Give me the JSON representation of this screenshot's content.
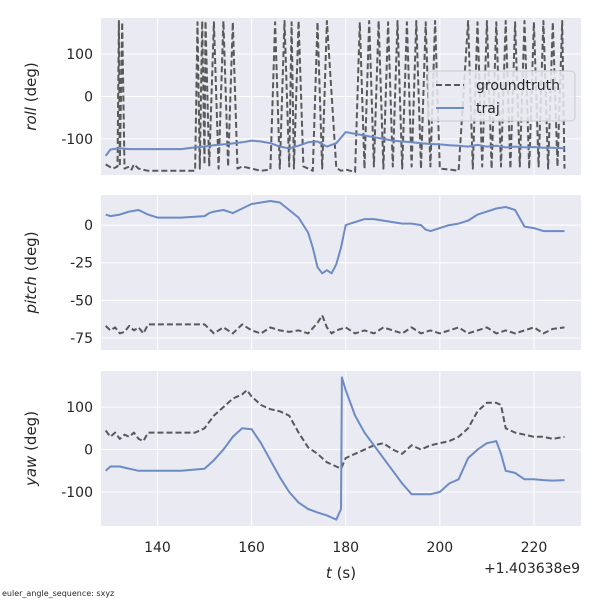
{
  "footnote": "euler_angle_sequence: sxyz",
  "offset_label": "+1.403638e9",
  "legend": [
    "groundtruth",
    "traj"
  ],
  "colors": {
    "groundtruth": "#595959",
    "traj": "#6d8bc4",
    "panel_bg": "#eaeaf2",
    "grid": "#ffffff"
  },
  "chart_data": [
    {
      "type": "line",
      "ylabel_var": "roll",
      "ylabel_unit": " (deg)",
      "xlim": [
        128,
        230
      ],
      "ylim": [
        -185,
        185
      ],
      "yticks": [
        -100,
        0,
        100
      ],
      "legend_position": "right",
      "series": [
        {
          "name": "groundtruth",
          "style": "dashed",
          "x": [
            129,
            130.5,
            131.5,
            131.8,
            132,
            132.5,
            133,
            134,
            134.5,
            135,
            136,
            138,
            140,
            142,
            144,
            146,
            148,
            148.5,
            149,
            149.5,
            150,
            150.2,
            151,
            152,
            153,
            154,
            155,
            156,
            157,
            158,
            160,
            162,
            164,
            165,
            166,
            167,
            168,
            168.5,
            169,
            170,
            171,
            172,
            173,
            174,
            175,
            176,
            178,
            179,
            180,
            181,
            182,
            183,
            184,
            185,
            186,
            187,
            188,
            189,
            190,
            191,
            192,
            193,
            194,
            195,
            196,
            197,
            198,
            199,
            200,
            202,
            204,
            206,
            207,
            208,
            209,
            210,
            211,
            212,
            213,
            214,
            215,
            216,
            217,
            218,
            219,
            220,
            221,
            222,
            223,
            224,
            225,
            226,
            226.5
          ],
          "y": [
            -160,
            -170,
            -165,
            178,
            -165,
            175,
            -170,
            -165,
            -172,
            -160,
            -170,
            -175,
            -175,
            -175,
            -175,
            -175,
            -175,
            175,
            -170,
            178,
            -160,
            178,
            -165,
            175,
            -170,
            178,
            -165,
            175,
            -170,
            -165,
            -170,
            -175,
            -172,
            175,
            -170,
            178,
            -165,
            175,
            -170,
            178,
            -165,
            -170,
            -175,
            175,
            -170,
            178,
            -168,
            -175,
            -172,
            -175,
            -178,
            175,
            -170,
            178,
            -165,
            178,
            -170,
            175,
            -165,
            178,
            -170,
            175,
            -165,
            178,
            -170,
            175,
            -165,
            178,
            -170,
            -172,
            -175,
            178,
            -170,
            175,
            -165,
            178,
            -170,
            175,
            -165,
            178,
            -170,
            175,
            -165,
            178,
            -170,
            175,
            -165,
            178,
            -170,
            175,
            -165,
            178,
            -170
          ]
        },
        {
          "name": "traj",
          "style": "solid",
          "x": [
            129,
            130,
            132,
            134,
            136,
            140,
            145,
            148,
            150,
            152,
            155,
            158,
            160,
            162,
            164,
            166,
            168,
            170,
            172,
            174,
            176,
            178,
            180,
            182,
            184,
            186,
            188,
            190,
            192,
            194,
            196,
            198,
            200,
            202,
            204,
            206,
            208,
            210,
            212,
            214,
            216,
            218,
            220,
            222,
            224,
            226.5
          ],
          "y": [
            -140,
            -125,
            -122,
            -124,
            -124,
            -124,
            -124,
            -120,
            -118,
            -115,
            -112,
            -108,
            -104,
            -106,
            -110,
            -118,
            -122,
            -116,
            -108,
            -106,
            -118,
            -110,
            -84,
            -88,
            -92,
            -96,
            -100,
            -104,
            -106,
            -108,
            -110,
            -112,
            -113,
            -115,
            -116,
            -118,
            -114,
            -118,
            -116,
            -120,
            -118,
            -120,
            -119,
            -121,
            -121,
            -122
          ]
        }
      ]
    },
    {
      "type": "line",
      "ylabel_var": "pitch",
      "ylabel_unit": " (deg)",
      "xlim": [
        128,
        230
      ],
      "ylim": [
        -83,
        20
      ],
      "yticks": [
        -75,
        -50,
        -25,
        0
      ],
      "series": [
        {
          "name": "groundtruth",
          "style": "dashed",
          "x": [
            129,
            130,
            131,
            132,
            133,
            134,
            135,
            136,
            137,
            138,
            140,
            145,
            150,
            152,
            154,
            156,
            158,
            160,
            162,
            164,
            166,
            168,
            170,
            172,
            174,
            175,
            176,
            177,
            178,
            180,
            182,
            184,
            186,
            188,
            190,
            192,
            194,
            196,
            198,
            200,
            202,
            204,
            206,
            208,
            210,
            212,
            214,
            216,
            218,
            220,
            222,
            224,
            226.5
          ],
          "y": [
            -67,
            -70,
            -68,
            -72,
            -71,
            -67,
            -70,
            -68,
            -72,
            -66,
            -66,
            -66,
            -66,
            -72,
            -68,
            -72,
            -66,
            -70,
            -72,
            -68,
            -70,
            -71,
            -70,
            -72,
            -65,
            -60,
            -68,
            -72,
            -70,
            -68,
            -72,
            -70,
            -72,
            -68,
            -70,
            -72,
            -68,
            -72,
            -70,
            -72,
            -70,
            -68,
            -72,
            -70,
            -68,
            -72,
            -70,
            -72,
            -70,
            -68,
            -72,
            -69,
            -68
          ]
        },
        {
          "name": "traj",
          "style": "solid",
          "x": [
            129,
            130,
            132,
            134,
            136,
            138,
            140,
            145,
            150,
            151,
            152,
            154,
            156,
            158,
            160,
            162,
            164,
            166,
            168,
            170,
            172,
            173,
            174,
            175,
            176,
            177,
            178,
            179,
            180,
            182,
            184,
            186,
            188,
            190,
            192,
            194,
            196,
            197,
            198,
            200,
            202,
            204,
            206,
            208,
            210,
            212,
            214,
            216,
            218,
            220,
            222,
            224,
            226.5
          ],
          "y": [
            7,
            6,
            7,
            9,
            10,
            7,
            5,
            5,
            6,
            8,
            9,
            10,
            8,
            11,
            14,
            15,
            16,
            15,
            10,
            5,
            -5,
            -15,
            -28,
            -32,
            -30,
            -32,
            -26,
            -15,
            0,
            2,
            4,
            4,
            3,
            2,
            1,
            1,
            0,
            -3,
            -4,
            -2,
            0,
            1,
            3,
            7,
            9,
            11,
            12,
            10,
            -1,
            -2,
            -4,
            -4,
            -4
          ]
        }
      ]
    },
    {
      "type": "line",
      "ylabel_var": "yaw",
      "ylabel_unit": " (deg)",
      "xlim": [
        128,
        230
      ],
      "ylim": [
        -180,
        185
      ],
      "yticks": [
        -100,
        0,
        100
      ],
      "series": [
        {
          "name": "groundtruth",
          "style": "dashed",
          "x": [
            129,
            130,
            131,
            132,
            133,
            134,
            135,
            136,
            137,
            138,
            140,
            144,
            148,
            150,
            152,
            154,
            156,
            158,
            159,
            160,
            162,
            164,
            166,
            168,
            170,
            172,
            174,
            176,
            178,
            179,
            180,
            182,
            184,
            186,
            188,
            190,
            192,
            194,
            196,
            198,
            200,
            202,
            204,
            206,
            208,
            210,
            212,
            213,
            214,
            216,
            218,
            220,
            222,
            224,
            226.5
          ],
          "y": [
            45,
            30,
            40,
            25,
            35,
            30,
            40,
            25,
            20,
            40,
            40,
            40,
            40,
            50,
            80,
            100,
            120,
            130,
            140,
            125,
            105,
            95,
            90,
            80,
            40,
            5,
            -10,
            -30,
            -40,
            -45,
            -20,
            -10,
            0,
            10,
            15,
            0,
            -10,
            10,
            0,
            10,
            15,
            20,
            30,
            50,
            90,
            110,
            110,
            105,
            50,
            40,
            35,
            30,
            30,
            25,
            30
          ]
        },
        {
          "name": "traj",
          "style": "solid",
          "x": [
            129,
            130,
            132,
            134,
            136,
            138,
            140,
            145,
            150,
            152,
            154,
            156,
            158,
            160,
            162,
            164,
            166,
            168,
            170,
            172,
            174,
            176,
            177,
            178,
            179,
            179.2,
            180,
            182,
            184,
            186,
            188,
            190,
            192,
            194,
            196,
            198,
            200,
            202,
            204,
            206,
            208,
            210,
            212,
            213,
            214,
            216,
            218,
            220,
            222,
            224,
            226.5
          ],
          "y": [
            -50,
            -40,
            -40,
            -45,
            -50,
            -50,
            -50,
            -50,
            -45,
            -25,
            0,
            30,
            50,
            48,
            15,
            -25,
            -65,
            -100,
            -125,
            -140,
            -148,
            -155,
            -160,
            -165,
            -140,
            170,
            140,
            80,
            40,
            10,
            -20,
            -50,
            -80,
            -105,
            -105,
            -105,
            -100,
            -80,
            -70,
            -20,
            0,
            15,
            20,
            -10,
            -50,
            -55,
            -70,
            -70,
            -72,
            -73,
            -72
          ]
        }
      ]
    }
  ],
  "xaxis": {
    "ticks": [
      140,
      160,
      180,
      200,
      220
    ],
    "label_var": "t",
    "label_unit": " (s)"
  }
}
